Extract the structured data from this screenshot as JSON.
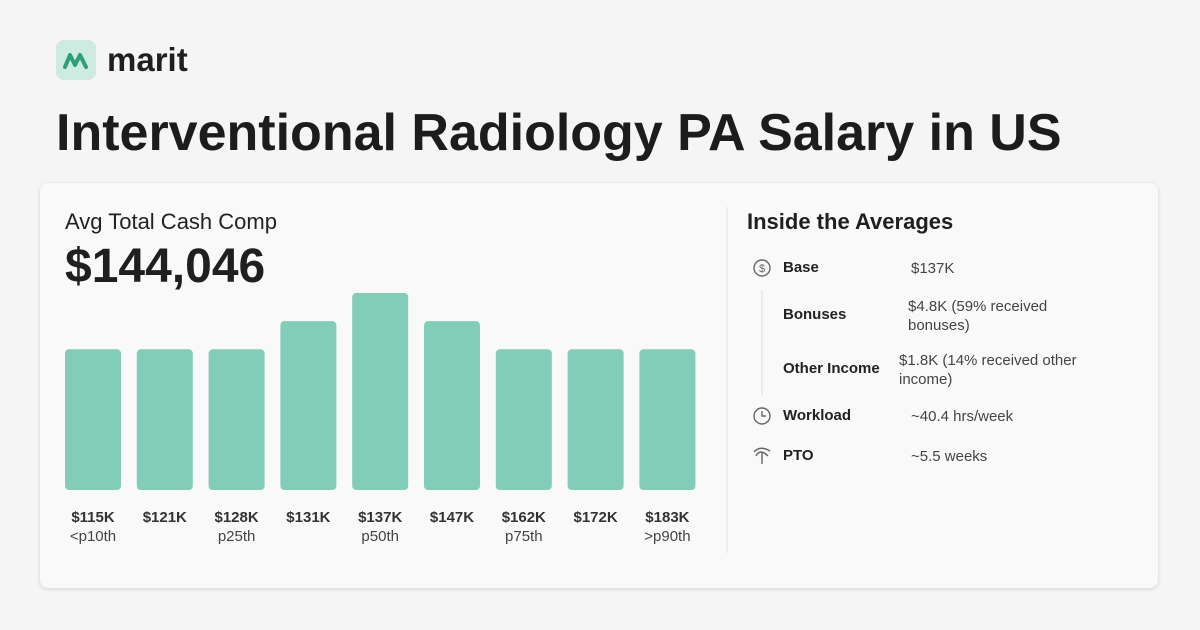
{
  "brand": "marit",
  "title": "Interventional Radiology PA Salary in US",
  "summary": {
    "label": "Avg Total Cash Comp",
    "value": "$144,046"
  },
  "chart_data": {
    "type": "bar",
    "categories": [
      "$115K",
      "$121K",
      "$128K",
      "$131K",
      "$137K",
      "$147K",
      "$162K",
      "$172K",
      "$183K"
    ],
    "sublabels": [
      "<p10th",
      null,
      "p25th",
      null,
      "p50th",
      null,
      "p75th",
      null,
      ">p90th"
    ],
    "values": [
      5,
      5,
      5,
      6,
      7,
      6,
      5,
      5,
      5
    ],
    "color": "#82cdb7"
  },
  "breakdown": {
    "title": "Inside the Averages",
    "rows": [
      {
        "label": "Base",
        "value": "$137K"
      },
      {
        "label": "Bonuses",
        "value": "$4.8K (59% received bonuses)"
      },
      {
        "label": "Other Income",
        "value": "$1.8K (14% received other income)"
      },
      {
        "label": "Workload",
        "value": "~40.4 hrs/week"
      },
      {
        "label": "PTO",
        "value": "~5.5 weeks"
      }
    ]
  }
}
